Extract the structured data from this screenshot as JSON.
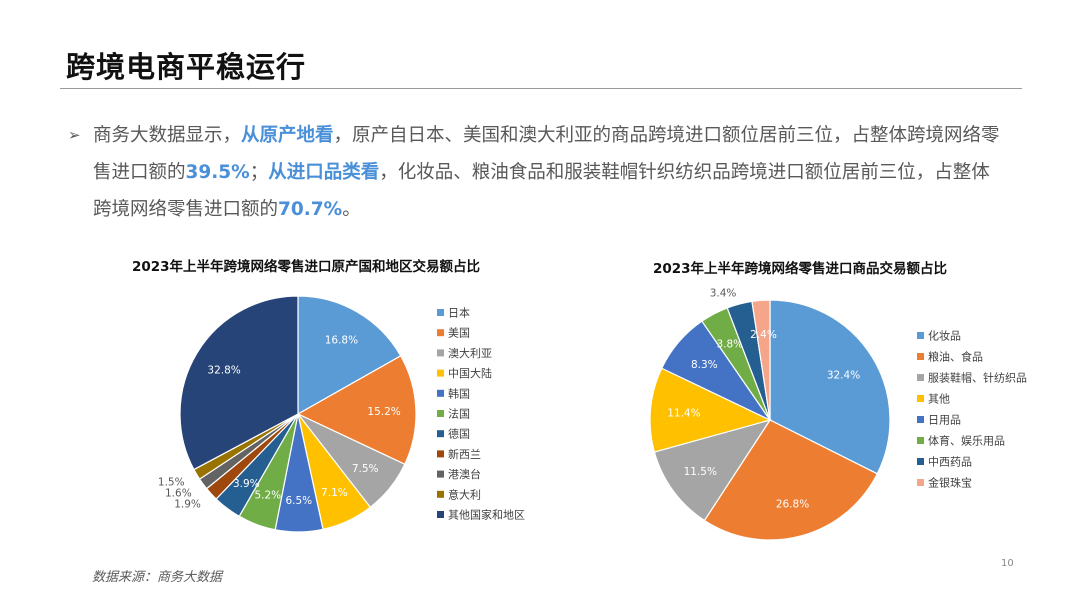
{
  "header": {
    "title": "跨境电商平稳运行"
  },
  "intro": {
    "bullet": "➢",
    "segments": [
      {
        "text": "商务大数据显示，",
        "hl": false
      },
      {
        "text": "从原产地看",
        "hl": true
      },
      {
        "text": "，原产自日本、美国和澳大利亚的商品跨境进口额位居前三位，占整体跨境网络零售进口额的",
        "hl": false
      },
      {
        "text": "39.5%",
        "hl": true
      },
      {
        "text": "；",
        "hl": false
      },
      {
        "text": "从进口品类看",
        "hl": true
      },
      {
        "text": "，化妆品、粮油食品和服装鞋帽针织纺织品跨境进口额位居前三位，占整体跨境网络零售进口额的",
        "hl": false
      },
      {
        "text": "70.7%",
        "hl": true
      },
      {
        "text": "。",
        "hl": false
      }
    ]
  },
  "colors": {
    "highlight": "#4a90d9",
    "title_rule": "#9a9a9a"
  },
  "chart_data": [
    {
      "type": "pie",
      "title": "2023年上半年跨境网络零售进口原产国和地区交易额占比",
      "categories": [
        "日本",
        "美国",
        "澳大利亚",
        "中国大陆",
        "韩国",
        "法国",
        "德国",
        "新西兰",
        "港澳台",
        "意大利",
        "其他国家和地区"
      ],
      "values": [
        16.8,
        15.2,
        7.5,
        7.1,
        6.5,
        5.2,
        3.9,
        1.9,
        1.6,
        1.5,
        32.8
      ],
      "labels": [
        "16.8%",
        "15.2%",
        "7.5%",
        "7.1%",
        "6.5%",
        "5.2%",
        "3.9%",
        "1.9%",
        "1.6%",
        "1.5%",
        "32.8%"
      ],
      "colors": [
        "#5b9bd5",
        "#ed7d31",
        "#a5a5a5",
        "#ffc000",
        "#4472c4",
        "#70ad47",
        "#255e91",
        "#9e480e",
        "#636363",
        "#997300",
        "#264478"
      ],
      "legend": "right"
    },
    {
      "type": "pie",
      "title": "2023年上半年跨境网络零售进口商品交易额占比",
      "categories": [
        "化妆品",
        "粮油、食品",
        "服装鞋帽、针纺织品",
        "其他",
        "日用品",
        "体育、娱乐用品",
        "中西药品",
        "金银珠宝"
      ],
      "values": [
        32.4,
        26.8,
        11.5,
        11.4,
        8.3,
        3.8,
        3.4,
        2.4
      ],
      "labels": [
        "32.4%",
        "26.8%",
        "11.5%",
        "11.4%",
        "8.3%",
        "3.8%",
        "3.4%",
        "2.4%"
      ],
      "colors": [
        "#5b9bd5",
        "#ed7d31",
        "#a5a5a5",
        "#ffc000",
        "#4472c4",
        "#70ad47",
        "#255e91",
        "#f4a58a"
      ],
      "legend": "right"
    }
  ],
  "footer": {
    "source": "数据来源：商务大数据",
    "page": "10"
  }
}
